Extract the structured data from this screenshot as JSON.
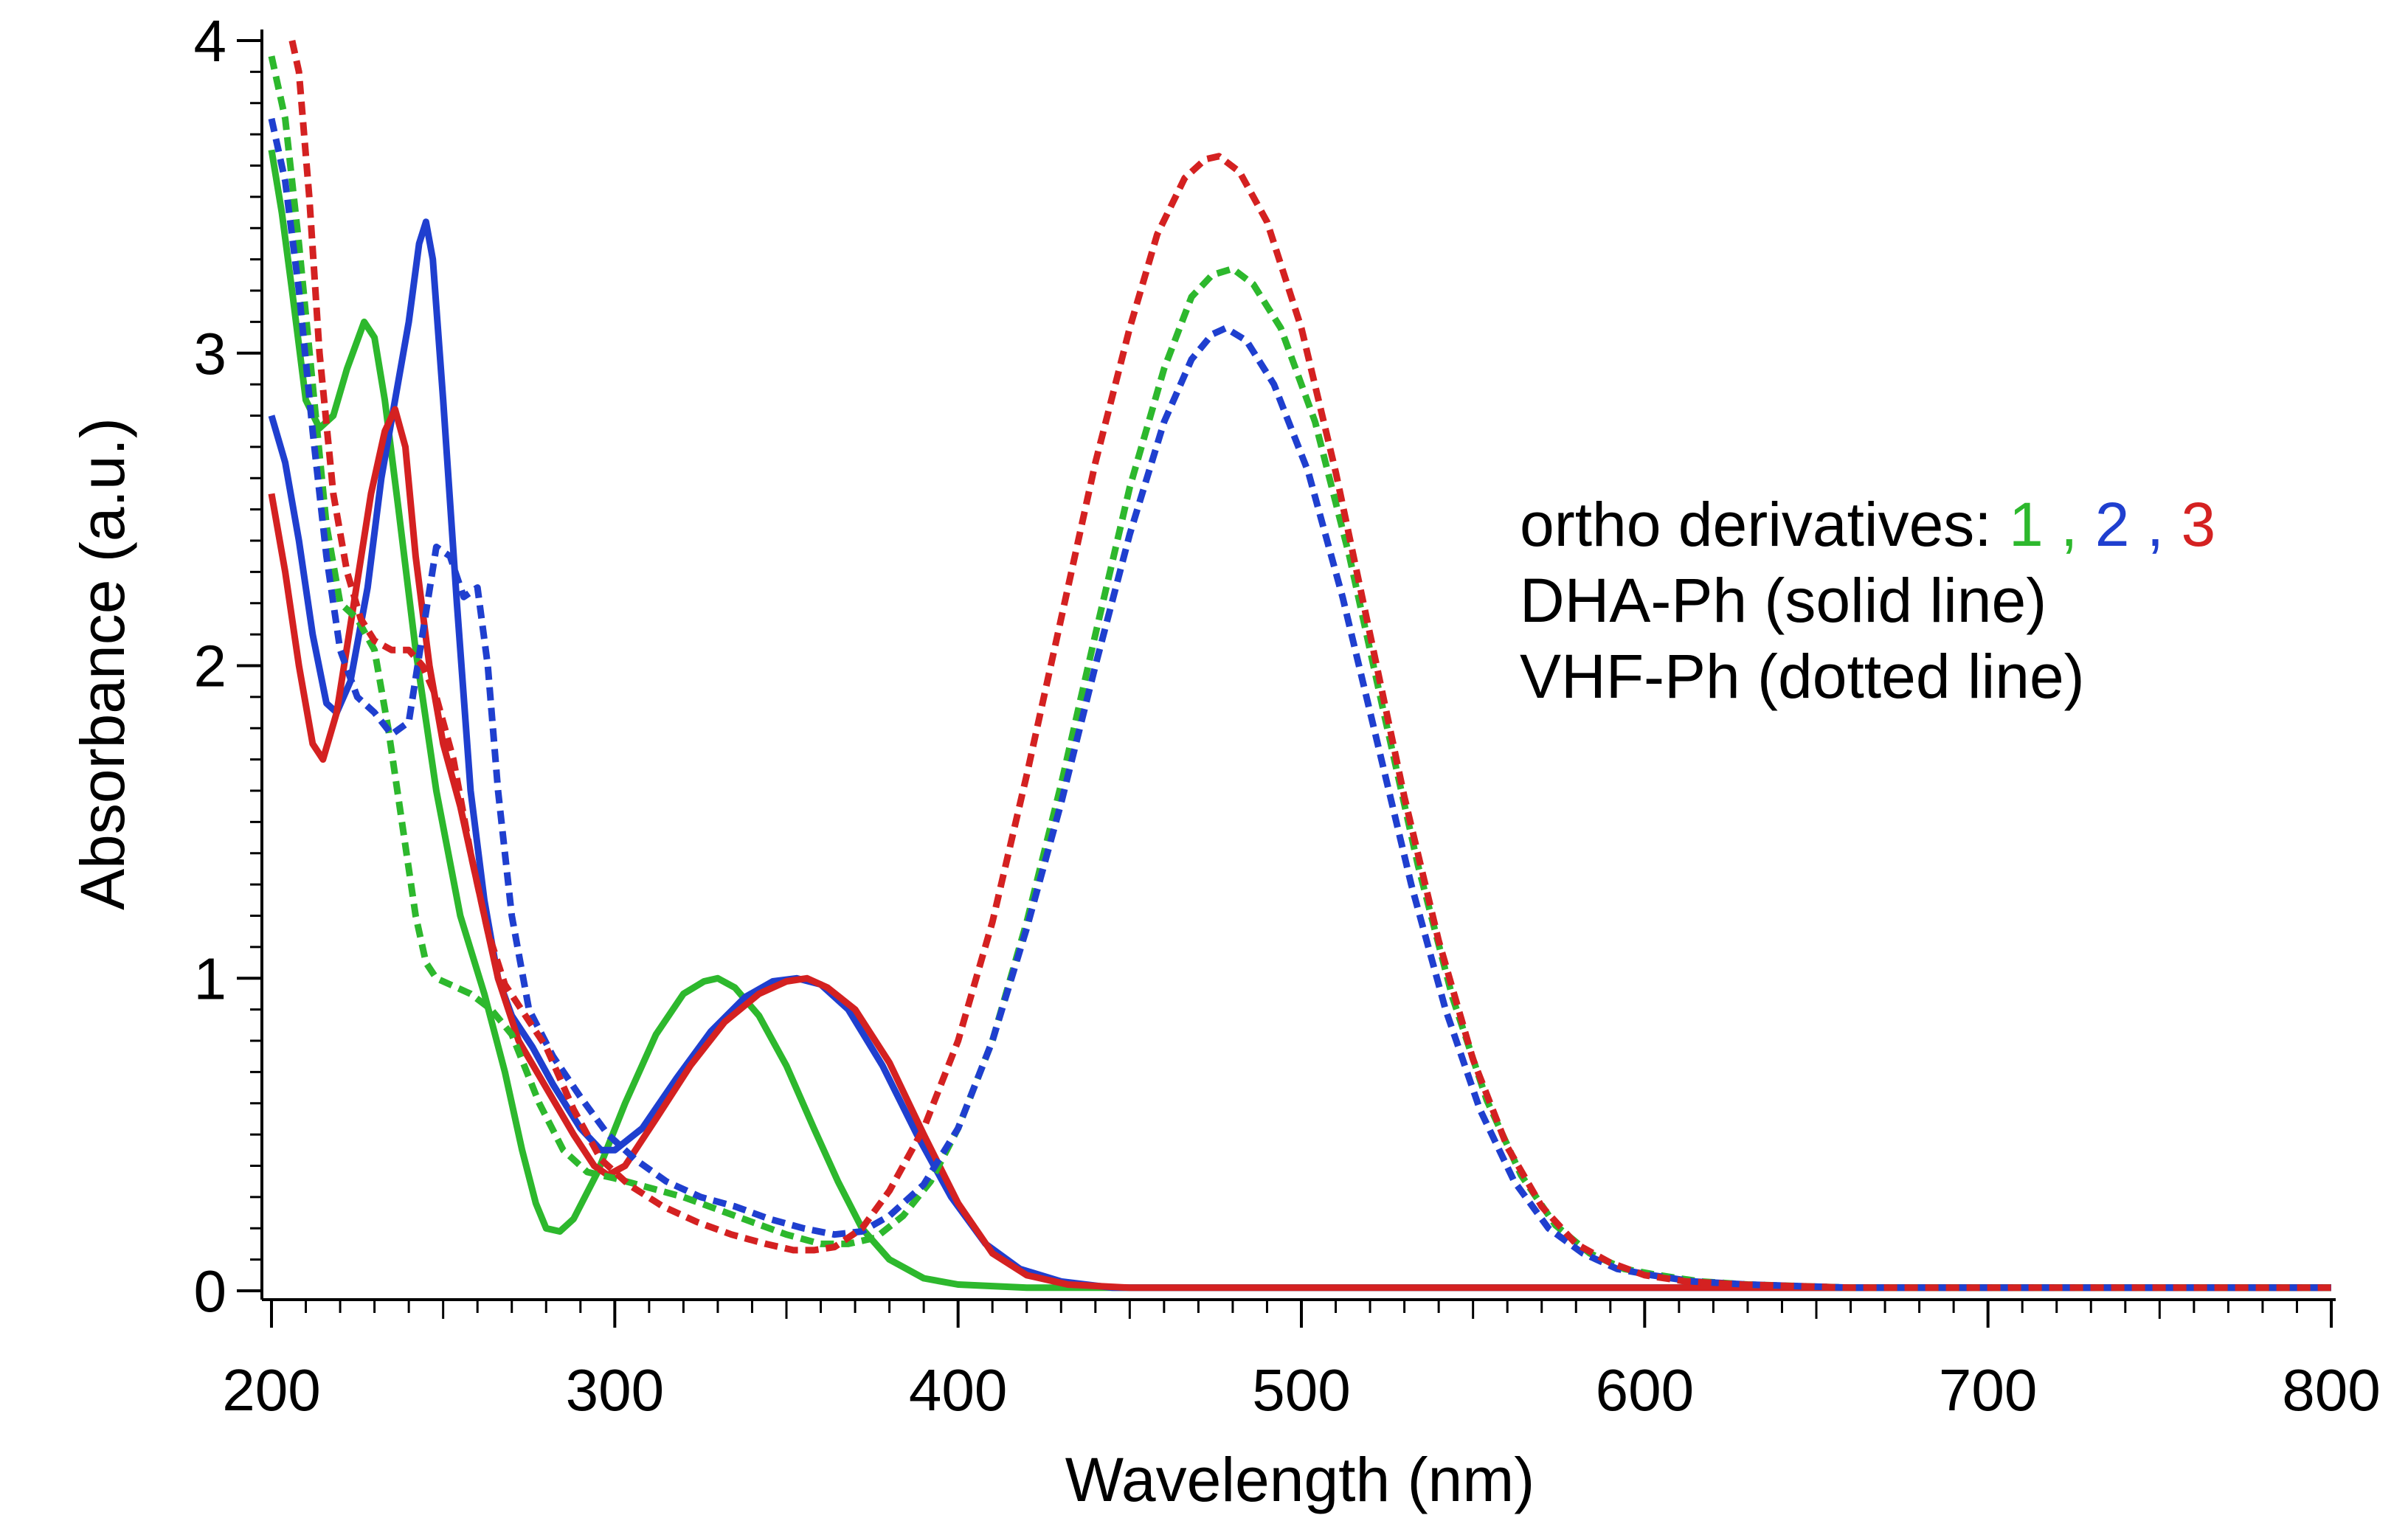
{
  "chart_data": {
    "type": "line",
    "xlabel": "Wavelength (nm)",
    "ylabel": "Absorbance (a.u.)",
    "xlim": [
      200,
      800
    ],
    "ylim": [
      0,
      4
    ],
    "x_ticks": [
      200,
      300,
      400,
      500,
      600,
      700,
      800
    ],
    "y_ticks": [
      0,
      1,
      2,
      3,
      4
    ],
    "grid": false,
    "legend": {
      "placement": "right",
      "line1_prefix": "ortho derivatives:",
      "compounds": [
        {
          "label": "1",
          "separator": ",",
          "color": "#2db82d"
        },
        {
          "label": "2",
          "separator": ",",
          "color": "#1f3fcf"
        },
        {
          "label": "3",
          "separator": "",
          "color": "#d42121"
        }
      ],
      "line2": "DHA-Ph (solid line)",
      "line3": "VHF-Ph (dotted line)"
    },
    "series": [
      {
        "compound": "1",
        "form": "DHA-Ph",
        "style": "solid",
        "color": "#2db82d",
        "points": [
          [
            200,
            3.65
          ],
          [
            203,
            3.45
          ],
          [
            206,
            3.2
          ],
          [
            210,
            2.85
          ],
          [
            214,
            2.76
          ],
          [
            218,
            2.8
          ],
          [
            222,
            2.95
          ],
          [
            227,
            3.1
          ],
          [
            230,
            3.05
          ],
          [
            233,
            2.85
          ],
          [
            237,
            2.5
          ],
          [
            242,
            2.05
          ],
          [
            248,
            1.6
          ],
          [
            255,
            1.2
          ],
          [
            262,
            0.95
          ],
          [
            268,
            0.7
          ],
          [
            273,
            0.45
          ],
          [
            277,
            0.28
          ],
          [
            280,
            0.2
          ],
          [
            284,
            0.19
          ],
          [
            288,
            0.23
          ],
          [
            295,
            0.38
          ],
          [
            303,
            0.6
          ],
          [
            312,
            0.82
          ],
          [
            320,
            0.95
          ],
          [
            326,
            0.99
          ],
          [
            330,
            1.0
          ],
          [
            335,
            0.97
          ],
          [
            342,
            0.88
          ],
          [
            350,
            0.72
          ],
          [
            358,
            0.52
          ],
          [
            365,
            0.35
          ],
          [
            372,
            0.2
          ],
          [
            380,
            0.1
          ],
          [
            390,
            0.04
          ],
          [
            400,
            0.02
          ],
          [
            420,
            0.01
          ],
          [
            450,
            0.01
          ],
          [
            800,
            0.01
          ]
        ]
      },
      {
        "compound": "2",
        "form": "DHA-Ph",
        "style": "solid",
        "color": "#1f3fcf",
        "points": [
          [
            200,
            2.8
          ],
          [
            204,
            2.65
          ],
          [
            208,
            2.4
          ],
          [
            212,
            2.1
          ],
          [
            216,
            1.88
          ],
          [
            219,
            1.85
          ],
          [
            223,
            1.95
          ],
          [
            228,
            2.25
          ],
          [
            232,
            2.6
          ],
          [
            236,
            2.85
          ],
          [
            240,
            3.1
          ],
          [
            243,
            3.35
          ],
          [
            245,
            3.42
          ],
          [
            247,
            3.3
          ],
          [
            250,
            2.85
          ],
          [
            254,
            2.2
          ],
          [
            258,
            1.6
          ],
          [
            262,
            1.25
          ],
          [
            266,
            1.0
          ],
          [
            270,
            0.88
          ],
          [
            276,
            0.78
          ],
          [
            282,
            0.66
          ],
          [
            290,
            0.52
          ],
          [
            296,
            0.45
          ],
          [
            300,
            0.45
          ],
          [
            308,
            0.52
          ],
          [
            318,
            0.68
          ],
          [
            328,
            0.83
          ],
          [
            338,
            0.94
          ],
          [
            346,
            0.99
          ],
          [
            353,
            1.0
          ],
          [
            360,
            0.98
          ],
          [
            368,
            0.9
          ],
          [
            378,
            0.72
          ],
          [
            388,
            0.5
          ],
          [
            398,
            0.3
          ],
          [
            408,
            0.15
          ],
          [
            418,
            0.07
          ],
          [
            430,
            0.03
          ],
          [
            445,
            0.01
          ],
          [
            470,
            0.01
          ],
          [
            800,
            0.01
          ]
        ]
      },
      {
        "compound": "3",
        "form": "DHA-Ph",
        "style": "solid",
        "color": "#d42121",
        "points": [
          [
            200,
            2.55
          ],
          [
            204,
            2.3
          ],
          [
            208,
            2.0
          ],
          [
            212,
            1.75
          ],
          [
            215,
            1.7
          ],
          [
            219,
            1.85
          ],
          [
            224,
            2.2
          ],
          [
            229,
            2.55
          ],
          [
            233,
            2.75
          ],
          [
            236,
            2.82
          ],
          [
            239,
            2.7
          ],
          [
            242,
            2.35
          ],
          [
            246,
            2.0
          ],
          [
            250,
            1.75
          ],
          [
            255,
            1.55
          ],
          [
            260,
            1.3
          ],
          [
            266,
            1.0
          ],
          [
            272,
            0.8
          ],
          [
            280,
            0.65
          ],
          [
            288,
            0.5
          ],
          [
            294,
            0.4
          ],
          [
            298,
            0.37
          ],
          [
            303,
            0.4
          ],
          [
            312,
            0.55
          ],
          [
            322,
            0.72
          ],
          [
            332,
            0.86
          ],
          [
            342,
            0.95
          ],
          [
            350,
            0.99
          ],
          [
            356,
            1.0
          ],
          [
            362,
            0.97
          ],
          [
            370,
            0.9
          ],
          [
            380,
            0.73
          ],
          [
            390,
            0.5
          ],
          [
            400,
            0.28
          ],
          [
            410,
            0.12
          ],
          [
            420,
            0.05
          ],
          [
            432,
            0.02
          ],
          [
            450,
            0.01
          ],
          [
            800,
            0.01
          ]
        ]
      },
      {
        "compound": "1",
        "form": "VHF-Ph",
        "style": "dotted",
        "color": "#2db82d",
        "points": [
          [
            200,
            3.95
          ],
          [
            204,
            3.75
          ],
          [
            208,
            3.35
          ],
          [
            212,
            2.9
          ],
          [
            216,
            2.45
          ],
          [
            220,
            2.2
          ],
          [
            225,
            2.15
          ],
          [
            230,
            2.05
          ],
          [
            234,
            1.8
          ],
          [
            238,
            1.5
          ],
          [
            242,
            1.2
          ],
          [
            245,
            1.05
          ],
          [
            248,
            1.0
          ],
          [
            252,
            0.98
          ],
          [
            258,
            0.95
          ],
          [
            264,
            0.9
          ],
          [
            270,
            0.82
          ],
          [
            278,
            0.6
          ],
          [
            285,
            0.45
          ],
          [
            292,
            0.38
          ],
          [
            300,
            0.36
          ],
          [
            310,
            0.33
          ],
          [
            320,
            0.3
          ],
          [
            330,
            0.26
          ],
          [
            340,
            0.22
          ],
          [
            350,
            0.18
          ],
          [
            360,
            0.15
          ],
          [
            368,
            0.15
          ],
          [
            376,
            0.17
          ],
          [
            384,
            0.24
          ],
          [
            392,
            0.35
          ],
          [
            400,
            0.52
          ],
          [
            410,
            0.8
          ],
          [
            420,
            1.18
          ],
          [
            430,
            1.62
          ],
          [
            440,
            2.1
          ],
          [
            450,
            2.57
          ],
          [
            460,
            2.95
          ],
          [
            468,
            3.18
          ],
          [
            474,
            3.25
          ],
          [
            480,
            3.27
          ],
          [
            486,
            3.22
          ],
          [
            494,
            3.08
          ],
          [
            504,
            2.78
          ],
          [
            514,
            2.35
          ],
          [
            524,
            1.85
          ],
          [
            534,
            1.36
          ],
          [
            544,
            0.94
          ],
          [
            554,
            0.61
          ],
          [
            564,
            0.37
          ],
          [
            574,
            0.21
          ],
          [
            584,
            0.12
          ],
          [
            594,
            0.07
          ],
          [
            604,
            0.05
          ],
          [
            616,
            0.03
          ],
          [
            630,
            0.02
          ],
          [
            660,
            0.01
          ],
          [
            800,
            0.01
          ]
        ]
      },
      {
        "compound": "2",
        "form": "VHF-Ph",
        "style": "dotted",
        "color": "#1f3fcf",
        "points": [
          [
            200,
            3.75
          ],
          [
            204,
            3.55
          ],
          [
            208,
            3.2
          ],
          [
            212,
            2.75
          ],
          [
            216,
            2.35
          ],
          [
            220,
            2.05
          ],
          [
            225,
            1.9
          ],
          [
            230,
            1.85
          ],
          [
            235,
            1.78
          ],
          [
            240,
            1.82
          ],
          [
            244,
            2.1
          ],
          [
            248,
            2.38
          ],
          [
            252,
            2.35
          ],
          [
            256,
            2.22
          ],
          [
            260,
            2.25
          ],
          [
            263,
            2.0
          ],
          [
            266,
            1.6
          ],
          [
            270,
            1.2
          ],
          [
            275,
            0.9
          ],
          [
            282,
            0.75
          ],
          [
            290,
            0.62
          ],
          [
            298,
            0.5
          ],
          [
            306,
            0.42
          ],
          [
            315,
            0.35
          ],
          [
            325,
            0.3
          ],
          [
            335,
            0.27
          ],
          [
            345,
            0.23
          ],
          [
            355,
            0.2
          ],
          [
            364,
            0.18
          ],
          [
            372,
            0.19
          ],
          [
            380,
            0.24
          ],
          [
            390,
            0.34
          ],
          [
            400,
            0.52
          ],
          [
            410,
            0.8
          ],
          [
            420,
            1.16
          ],
          [
            430,
            1.56
          ],
          [
            440,
            2.0
          ],
          [
            450,
            2.42
          ],
          [
            460,
            2.78
          ],
          [
            468,
            2.98
          ],
          [
            474,
            3.06
          ],
          [
            478,
            3.08
          ],
          [
            484,
            3.04
          ],
          [
            492,
            2.9
          ],
          [
            502,
            2.62
          ],
          [
            512,
            2.22
          ],
          [
            522,
            1.76
          ],
          [
            532,
            1.3
          ],
          [
            542,
            0.9
          ],
          [
            552,
            0.58
          ],
          [
            562,
            0.35
          ],
          [
            572,
            0.2
          ],
          [
            582,
            0.12
          ],
          [
            592,
            0.07
          ],
          [
            602,
            0.05
          ],
          [
            614,
            0.03
          ],
          [
            630,
            0.02
          ],
          [
            660,
            0.01
          ],
          [
            800,
            0.01
          ]
        ]
      },
      {
        "compound": "3",
        "form": "VHF-Ph",
        "style": "dotted",
        "color": "#d42121",
        "points": [
          [
            206,
            4.0
          ],
          [
            208,
            3.9
          ],
          [
            211,
            3.5
          ],
          [
            214,
            3.0
          ],
          [
            218,
            2.55
          ],
          [
            222,
            2.3
          ],
          [
            226,
            2.15
          ],
          [
            230,
            2.08
          ],
          [
            235,
            2.05
          ],
          [
            240,
            2.05
          ],
          [
            244,
            2.0
          ],
          [
            248,
            1.9
          ],
          [
            253,
            1.7
          ],
          [
            258,
            1.4
          ],
          [
            263,
            1.15
          ],
          [
            268,
            0.98
          ],
          [
            274,
            0.88
          ],
          [
            280,
            0.78
          ],
          [
            288,
            0.58
          ],
          [
            296,
            0.42
          ],
          [
            304,
            0.34
          ],
          [
            314,
            0.27
          ],
          [
            324,
            0.22
          ],
          [
            334,
            0.18
          ],
          [
            344,
            0.15
          ],
          [
            352,
            0.13
          ],
          [
            358,
            0.13
          ],
          [
            364,
            0.14
          ],
          [
            372,
            0.2
          ],
          [
            380,
            0.32
          ],
          [
            390,
            0.52
          ],
          [
            400,
            0.8
          ],
          [
            410,
            1.18
          ],
          [
            420,
            1.65
          ],
          [
            430,
            2.15
          ],
          [
            440,
            2.65
          ],
          [
            450,
            3.08
          ],
          [
            458,
            3.38
          ],
          [
            466,
            3.56
          ],
          [
            472,
            3.62
          ],
          [
            476,
            3.63
          ],
          [
            482,
            3.58
          ],
          [
            490,
            3.42
          ],
          [
            500,
            3.08
          ],
          [
            510,
            2.62
          ],
          [
            520,
            2.1
          ],
          [
            530,
            1.58
          ],
          [
            540,
            1.12
          ],
          [
            550,
            0.74
          ],
          [
            560,
            0.46
          ],
          [
            570,
            0.27
          ],
          [
            580,
            0.15
          ],
          [
            590,
            0.09
          ],
          [
            600,
            0.05
          ],
          [
            612,
            0.03
          ],
          [
            628,
            0.02
          ],
          [
            660,
            0.01
          ],
          [
            800,
            0.01
          ]
        ]
      }
    ]
  }
}
